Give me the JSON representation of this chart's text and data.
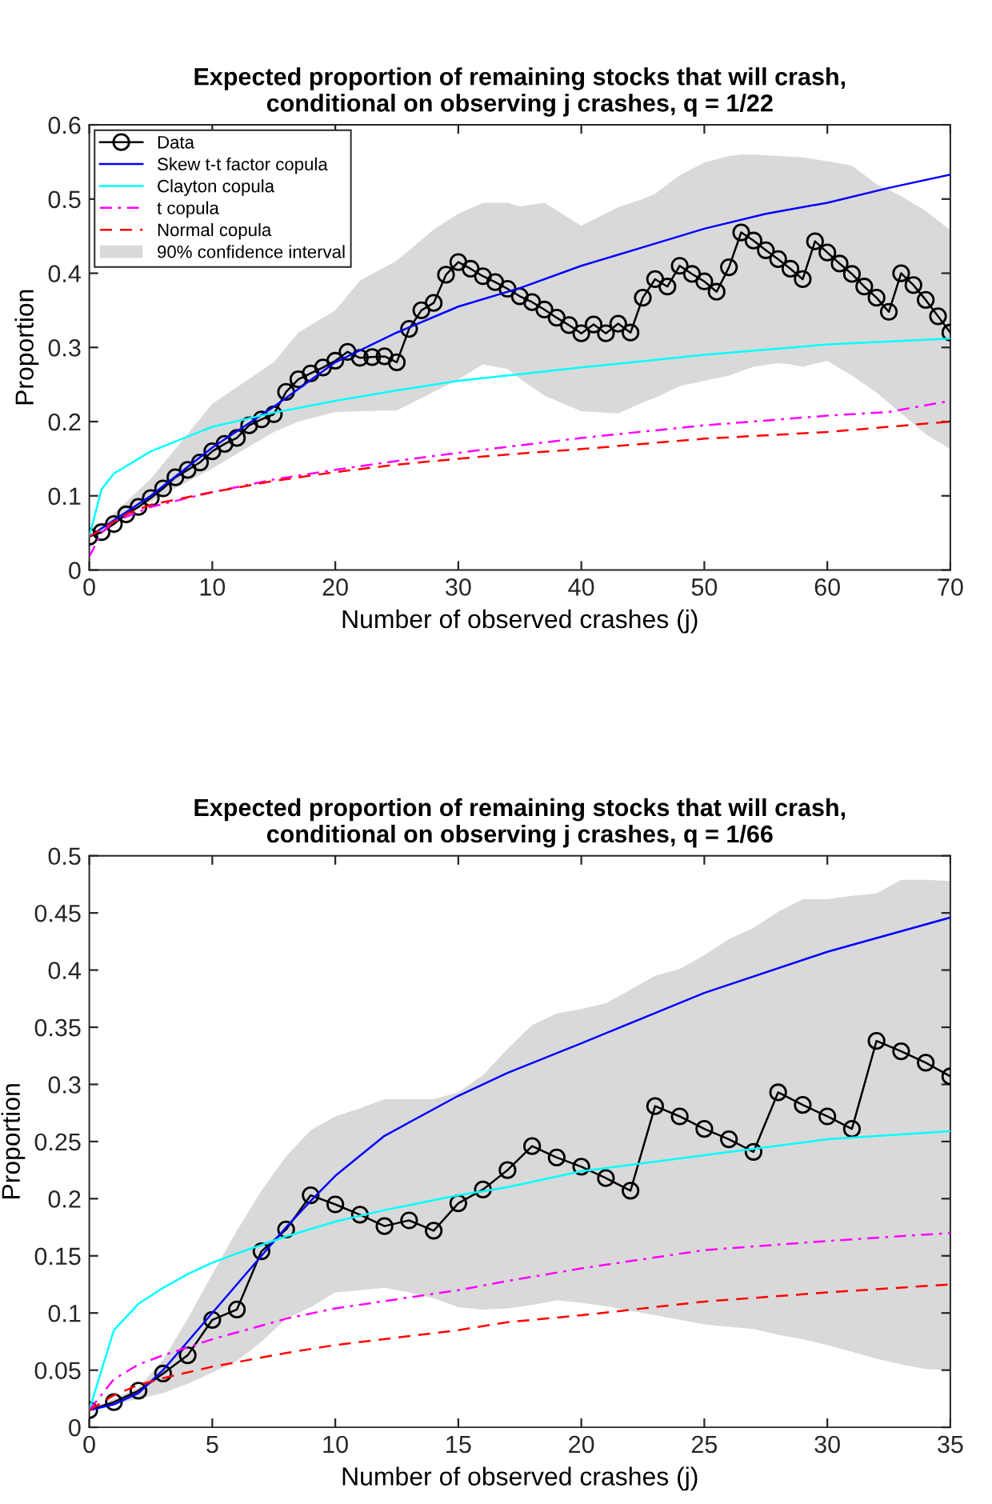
{
  "chart_data": [
    {
      "type": "line",
      "title": "Expected proportion of remaining stocks that will crash,\nconditional on observing j crashes, q = 1/22",
      "xlabel": "Number of observed crashes (j)",
      "ylabel": "Proportion",
      "xlim": [
        0,
        70
      ],
      "ylim": [
        0,
        0.6
      ],
      "xticks": [
        0,
        10,
        20,
        30,
        40,
        50,
        60,
        70
      ],
      "yticks": [
        0,
        0.1,
        0.2,
        0.3,
        0.4,
        0.5,
        0.6
      ],
      "grid": false,
      "legend": "top left",
      "series": [
        {
          "name": "Data",
          "color": "#000000",
          "marker": "circle",
          "line_style": "solid",
          "x": [
            0,
            1,
            2,
            3,
            4,
            5,
            6,
            7,
            8,
            9,
            10,
            11,
            12,
            13,
            14,
            15,
            16,
            17,
            18,
            19,
            20,
            21,
            22,
            23,
            24,
            25,
            26,
            27,
            28,
            29,
            30,
            31,
            32,
            33,
            34,
            35,
            36,
            37,
            38,
            39,
            40,
            41,
            42,
            43,
            44,
            45,
            46,
            47,
            48,
            49,
            50,
            51,
            52,
            53,
            54,
            55,
            56,
            57,
            58,
            59,
            60,
            61,
            62,
            63,
            64,
            65,
            66,
            67,
            68,
            69,
            70
          ],
          "values": [
            0.045,
            0.051,
            0.062,
            0.075,
            0.085,
            0.097,
            0.11,
            0.125,
            0.135,
            0.145,
            0.16,
            0.17,
            0.178,
            0.195,
            0.203,
            0.21,
            0.24,
            0.257,
            0.265,
            0.273,
            0.282,
            0.294,
            0.286,
            0.287,
            0.288,
            0.28,
            0.325,
            0.35,
            0.36,
            0.398,
            0.415,
            0.406,
            0.396,
            0.388,
            0.379,
            0.369,
            0.361,
            0.351,
            0.34,
            0.33,
            0.319,
            0.331,
            0.319,
            0.332,
            0.32,
            0.367,
            0.392,
            0.382,
            0.41,
            0.399,
            0.389,
            0.375,
            0.408,
            0.455,
            0.444,
            0.431,
            0.419,
            0.406,
            0.392,
            0.443,
            0.428,
            0.413,
            0.399,
            0.382,
            0.367,
            0.348,
            0.4,
            0.384,
            0.364,
            0.342,
            0.32
          ]
        },
        {
          "name": "Skew t-t factor copula",
          "color": "#0000ff",
          "marker": "none",
          "line_style": "solid",
          "x": [
            0,
            5,
            10,
            15,
            20,
            25,
            30,
            35,
            40,
            45,
            50,
            55,
            60,
            65,
            70
          ],
          "values": [
            0.045,
            0.1,
            0.165,
            0.22,
            0.28,
            0.32,
            0.355,
            0.38,
            0.41,
            0.435,
            0.46,
            0.48,
            0.495,
            0.515,
            0.533
          ]
        },
        {
          "name": "Clayton copula",
          "color": "#00ffff",
          "marker": "none",
          "line_style": "solid",
          "x": [
            0,
            1,
            2,
            5,
            10,
            15,
            20,
            25,
            30,
            35,
            40,
            50,
            60,
            70
          ],
          "values": [
            0.045,
            0.109,
            0.13,
            0.16,
            0.193,
            0.212,
            0.228,
            0.242,
            0.255,
            0.264,
            0.273,
            0.29,
            0.304,
            0.312
          ]
        },
        {
          "name": "t copula",
          "color": "#ff00ff",
          "marker": "none",
          "line_style": "dashdot",
          "x": [
            0,
            1,
            2,
            5,
            10,
            15,
            20,
            25,
            30,
            35,
            40,
            50,
            60,
            65,
            70
          ],
          "values": [
            0.018,
            0.05,
            0.065,
            0.085,
            0.105,
            0.122,
            0.135,
            0.147,
            0.158,
            0.168,
            0.178,
            0.195,
            0.208,
            0.213,
            0.228
          ]
        },
        {
          "name": "Normal copula",
          "color": "#ff0000",
          "marker": "none",
          "line_style": "dashed",
          "x": [
            0,
            1,
            3,
            5,
            10,
            15,
            20,
            25,
            30,
            35,
            40,
            50,
            60,
            70
          ],
          "values": [
            0.045,
            0.055,
            0.075,
            0.088,
            0.105,
            0.12,
            0.132,
            0.142,
            0.15,
            0.157,
            0.163,
            0.177,
            0.186,
            0.2
          ]
        },
        {
          "name": "90% confidence interval",
          "type": "area",
          "color": "#d9d9d9",
          "x": [
            0,
            5,
            10,
            15,
            17,
            20,
            22,
            25,
            28,
            30,
            32,
            34,
            35,
            37,
            40,
            43,
            45,
            46,
            48,
            50,
            52,
            53,
            54,
            56,
            57,
            58,
            60,
            62,
            64,
            66,
            68,
            70
          ],
          "lower": [
            0.045,
            0.092,
            0.137,
            0.186,
            0.2,
            0.213,
            0.214,
            0.215,
            0.24,
            0.257,
            0.277,
            0.271,
            0.258,
            0.235,
            0.214,
            0.211,
            0.226,
            0.232,
            0.248,
            0.255,
            0.262,
            0.268,
            0.274,
            0.279,
            0.277,
            0.274,
            0.282,
            0.262,
            0.239,
            0.211,
            0.183,
            0.163
          ],
          "values": [
            null,
            null,
            null,
            null,
            null,
            null,
            null,
            null,
            null,
            null,
            null,
            null,
            null,
            null,
            null,
            null,
            null,
            null,
            null,
            null,
            null,
            null,
            null,
            null,
            null,
            null,
            null,
            null,
            null,
            null,
            null,
            null
          ],
          "upper": [
            0.045,
            0.123,
            0.224,
            0.28,
            0.32,
            0.35,
            0.39,
            0.417,
            0.459,
            0.48,
            0.495,
            0.495,
            0.49,
            0.495,
            0.464,
            0.489,
            0.5,
            0.507,
            0.532,
            0.549,
            0.558,
            0.56,
            0.56,
            0.558,
            0.557,
            0.556,
            0.551,
            0.545,
            0.52,
            0.504,
            0.484,
            0.458
          ]
        }
      ]
    },
    {
      "type": "line",
      "title": "Expected proportion of remaining stocks that will crash,\nconditional on observing j crashes, q = 1/66",
      "xlabel": "Number of observed crashes (j)",
      "ylabel": "Proportion",
      "xlim": [
        0,
        35
      ],
      "ylim": [
        0,
        0.5
      ],
      "xticks": [
        0,
        5,
        10,
        15,
        20,
        25,
        30,
        35
      ],
      "yticks": [
        0,
        0.05,
        0.1,
        0.15,
        0.2,
        0.25,
        0.3,
        0.35,
        0.4,
        0.45,
        0.5
      ],
      "grid": false,
      "legend": false,
      "series": [
        {
          "color": "#000000",
          "marker": "circle",
          "line_style": "solid",
          "x": [
            0,
            1,
            2,
            3,
            4,
            5,
            6,
            7,
            8,
            9,
            10,
            11,
            12,
            13,
            14,
            15,
            16,
            17,
            18,
            19,
            20,
            21,
            22,
            23,
            24,
            25,
            26,
            27,
            28,
            29,
            30,
            31,
            32,
            33,
            34,
            35
          ],
          "values": [
            0.015,
            0.022,
            0.032,
            0.047,
            0.063,
            0.094,
            0.103,
            0.154,
            0.173,
            0.203,
            0.195,
            0.186,
            0.176,
            0.181,
            0.172,
            0.196,
            0.208,
            0.225,
            0.246,
            0.236,
            0.228,
            0.218,
            0.207,
            0.281,
            0.272,
            0.261,
            0.252,
            0.241,
            0.293,
            0.282,
            0.272,
            0.261,
            0.338,
            0.329,
            0.319,
            0.307
          ]
        },
        {
          "color": "#0000ff",
          "marker": "none",
          "line_style": "solid",
          "x": [
            0,
            1,
            2,
            3,
            4,
            5,
            6,
            7,
            8,
            9,
            10,
            12,
            15,
            17,
            20,
            25,
            30,
            35
          ],
          "values": [
            0.015,
            0.02,
            0.03,
            0.05,
            0.075,
            0.1,
            0.125,
            0.15,
            0.175,
            0.198,
            0.22,
            0.255,
            0.29,
            0.31,
            0.336,
            0.38,
            0.416,
            0.446
          ]
        },
        {
          "color": "#00ffff",
          "marker": "none",
          "line_style": "solid",
          "x": [
            0,
            1,
            2,
            3,
            4,
            5,
            6,
            8,
            10,
            12,
            15,
            17,
            20,
            25,
            30,
            35
          ],
          "values": [
            0.015,
            0.085,
            0.108,
            0.122,
            0.134,
            0.144,
            0.152,
            0.167,
            0.18,
            0.19,
            0.203,
            0.21,
            0.224,
            0.238,
            0.252,
            0.259
          ]
        },
        {
          "color": "#ff00ff",
          "marker": "none",
          "line_style": "dashdot",
          "x": [
            0,
            1,
            2,
            3,
            5,
            8,
            10,
            15,
            17,
            20,
            25,
            30,
            35
          ],
          "values": [
            0.015,
            0.042,
            0.055,
            0.063,
            0.077,
            0.095,
            0.104,
            0.12,
            0.128,
            0.139,
            0.155,
            0.163,
            0.17
          ]
        },
        {
          "color": "#ff0000",
          "marker": "none",
          "line_style": "dashed",
          "x": [
            0,
            1,
            2,
            3,
            5,
            8,
            10,
            15,
            17,
            20,
            25,
            30,
            35
          ],
          "values": [
            0.015,
            0.028,
            0.037,
            0.043,
            0.053,
            0.065,
            0.072,
            0.085,
            0.092,
            0.098,
            0.11,
            0.118,
            0.125
          ]
        },
        {
          "type": "area",
          "color": "#d9d9d9",
          "x": [
            0,
            1,
            2,
            3,
            4,
            5,
            6,
            7,
            8,
            9,
            10,
            11,
            12,
            13,
            14,
            15,
            16,
            17,
            18,
            19,
            20,
            21,
            22,
            23,
            24,
            25,
            26,
            27,
            28,
            29,
            30,
            31,
            32,
            33,
            34,
            35
          ],
          "lower": [
            0.015,
            0.02,
            0.025,
            0.03,
            0.038,
            0.048,
            0.058,
            0.075,
            0.095,
            0.105,
            0.118,
            0.12,
            0.122,
            0.118,
            0.113,
            0.105,
            0.103,
            0.104,
            0.107,
            0.111,
            0.109,
            0.106,
            0.102,
            0.098,
            0.094,
            0.09,
            0.088,
            0.086,
            0.081,
            0.077,
            0.072,
            0.066,
            0.06,
            0.055,
            0.051,
            0.05
          ],
          "values": [
            null,
            null,
            null,
            null,
            null,
            null,
            null,
            null,
            null,
            null,
            null,
            null,
            null,
            null,
            null,
            null,
            null,
            null,
            null,
            null,
            null,
            null,
            null,
            null,
            null,
            null,
            null,
            null,
            null,
            null,
            null,
            null,
            null,
            null,
            null,
            null
          ],
          "upper": [
            0.015,
            0.025,
            0.035,
            0.059,
            0.095,
            0.134,
            0.172,
            0.207,
            0.237,
            0.26,
            0.272,
            0.279,
            0.287,
            0.287,
            0.287,
            0.293,
            0.308,
            0.331,
            0.352,
            0.362,
            0.366,
            0.371,
            0.383,
            0.395,
            0.401,
            0.413,
            0.427,
            0.437,
            0.451,
            0.462,
            0.462,
            0.465,
            0.467,
            0.479,
            0.479,
            0.478
          ]
        }
      ]
    }
  ]
}
